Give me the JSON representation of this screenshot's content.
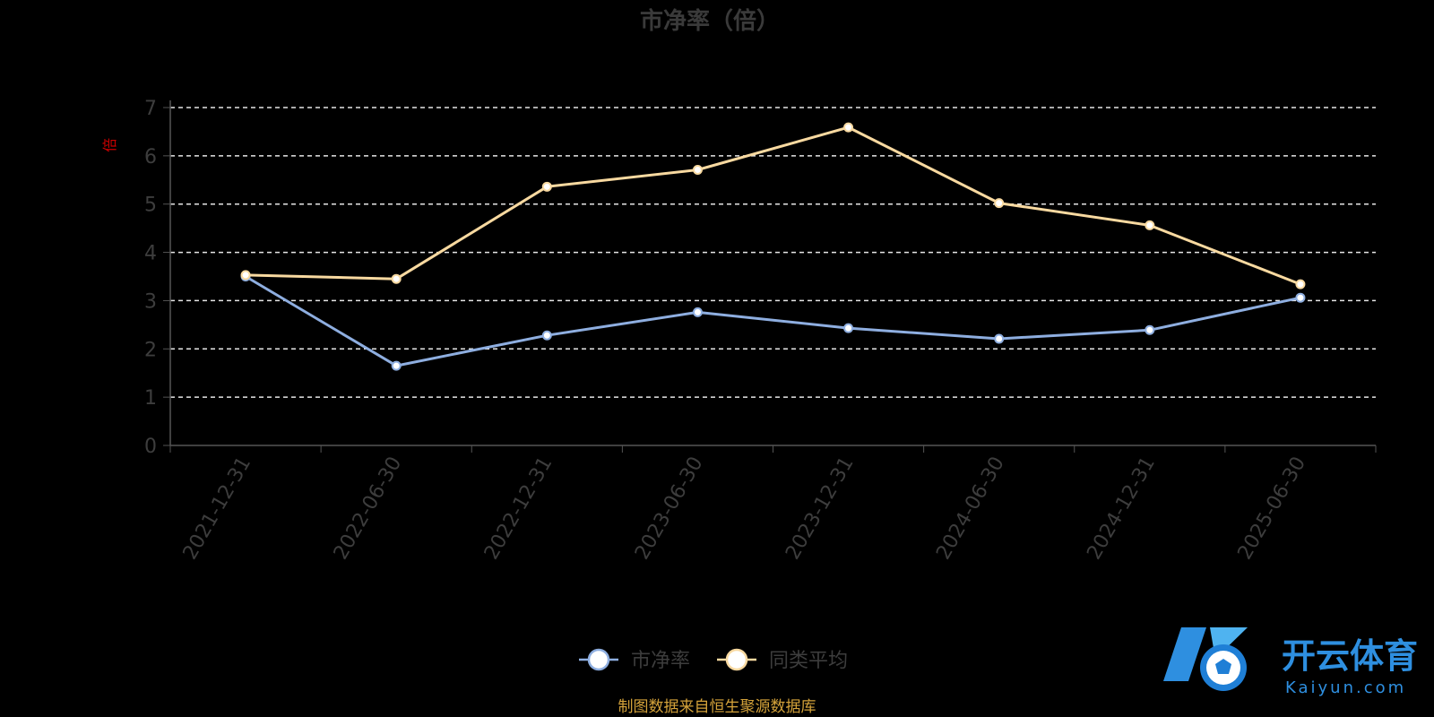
{
  "chart_data": {
    "type": "line",
    "title": "市净率（倍）",
    "ylabel": "倍",
    "x": [
      "2021-12-31",
      "2022-06-30",
      "2022-12-31",
      "2023-06-30",
      "2023-12-31",
      "2024-06-30",
      "2024-12-31",
      "2025-06-30"
    ],
    "ylim": [
      0,
      7
    ],
    "yticks": [
      0,
      1,
      2,
      3,
      4,
      5,
      6,
      7
    ],
    "grid": true,
    "legend_position": "bottom-center",
    "series": [
      {
        "name": "市净率",
        "color": "#8eaee0",
        "values": [
          3.5,
          1.65,
          2.28,
          2.76,
          2.43,
          2.21,
          2.39,
          3.06
        ]
      },
      {
        "name": "同类平均",
        "color": "#f8d9a0",
        "values": [
          3.53,
          3.45,
          5.36,
          5.71,
          6.59,
          5.02,
          4.56,
          3.34
        ]
      }
    ]
  },
  "source_note": "制图数据来自恒生聚源数据库",
  "watermark": {
    "name": "开云体育",
    "domain": "Kaiyun.com",
    "color": "#2e8fe0"
  }
}
